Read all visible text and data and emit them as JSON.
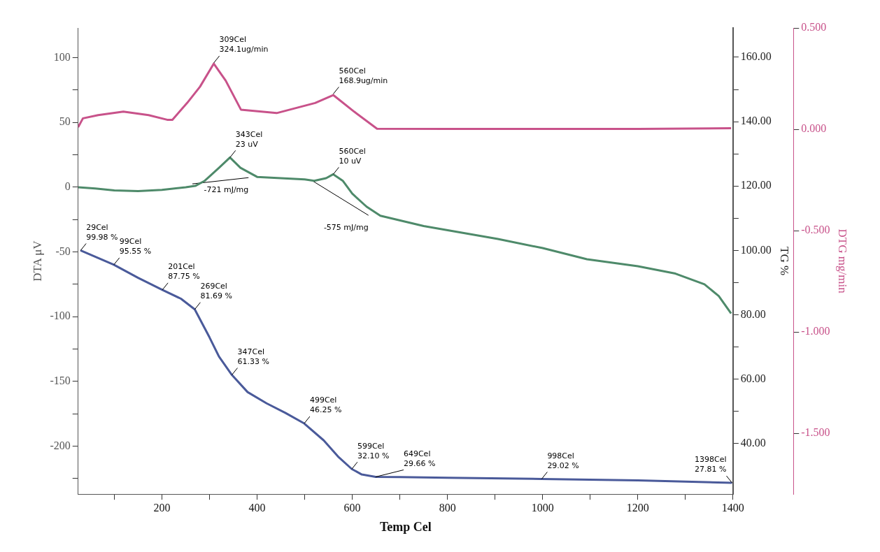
{
  "chart_data": {
    "type": "line",
    "xlabel": "Temp Cel",
    "ylabel": "DTA μV",
    "y2label": "TG %",
    "y3label": "DTG mg/min",
    "xlim": [
      24,
      1400
    ],
    "xticks": [
      {
        "value": 100,
        "label": null
      },
      200,
      {
        "value": 300,
        "label": null
      },
      400,
      {
        "value": 500,
        "label": null
      },
      600,
      {
        "value": 700,
        "label": null
      },
      800,
      {
        "value": 900,
        "label": null
      },
      1000,
      {
        "value": 1100,
        "label": null
      },
      1200,
      {
        "value": 1300,
        "label": null
      },
      1400
    ],
    "ylim": [
      -237,
      123
    ],
    "yticks": [
      {
        "value": -225,
        "label": null
      },
      -200,
      {
        "value": -175,
        "label": null
      },
      -150,
      {
        "value": -125,
        "label": null
      },
      -100,
      {
        "value": -75,
        "label": null
      },
      -50,
      {
        "value": -25,
        "label": null
      },
      0,
      {
        "value": 25,
        "label": null
      },
      50,
      {
        "value": 75,
        "label": null
      },
      100
    ],
    "y2lim": [
      24.3,
      169.1
    ],
    "y2ticks": [
      {
        "value": 40,
        "label": "40.00"
      },
      {
        "value": 50,
        "label": null
      },
      {
        "value": 60,
        "label": "60.00"
      },
      {
        "value": 70,
        "label": null
      },
      {
        "value": 80,
        "label": "80.00"
      },
      {
        "value": 90,
        "label": null
      },
      {
        "value": 100,
        "label": "100.00"
      },
      {
        "value": 110,
        "label": null
      },
      {
        "value": 120,
        "label": "120.00"
      },
      {
        "value": 130,
        "label": null
      },
      {
        "value": 140,
        "label": "140.00"
      },
      {
        "value": 150,
        "label": null
      },
      {
        "value": 160,
        "label": "160.00"
      }
    ],
    "y3lim": [
      -1.8,
      0.5
    ],
    "y3ticks": [
      {
        "value": -1.5,
        "label": "-1.500"
      },
      {
        "value": -1,
        "label": "-1.000"
      },
      {
        "value": -0.5,
        "label": "-0.500"
      },
      {
        "value": 0,
        "label": "0.000"
      },
      {
        "value": 0.5,
        "label": "0.500"
      }
    ],
    "annotations": [
      {
        "text": "-721 mJ/mg",
        "x": 382,
        "y": 7.4
      },
      {
        "text": "-575 mJ/mg",
        "x": 634,
        "y": -21.7
      },
      {
        "text": "309Cel\n324.1ug/min",
        "x": 309,
        "y": 96
      },
      {
        "text": "560Cel\n168.9ug/min",
        "x": 560,
        "y": 72
      }
    ],
    "series": [
      {
        "color": "#c8528a",
        "axis": "y3",
        "x": [
          24,
          34,
          66,
          119,
          172,
          211,
          222,
          253,
          280,
          309,
          334,
          366,
          441,
          522,
          560,
          604,
          652,
          800,
          1000,
          1200,
          1396
        ],
        "values": [
          0.01,
          0.054,
          0.07,
          0.087,
          0.07,
          0.047,
          0.047,
          0.13,
          0.21,
          0.324,
          0.24,
          0.097,
          0.08,
          0.13,
          0.169,
          0.087,
          0.003,
          0.002,
          0.002,
          0.002,
          0.005
        ]
      },
      {
        "color": "#4e8a6a",
        "axis": "y",
        "x": [
          24,
          60,
          100,
          150,
          200,
          250,
          270,
          290,
          320,
          343,
          365,
          400,
          450,
          500,
          520,
          545,
          560,
          580,
          600,
          630,
          659,
          750,
          906,
          1000,
          1093,
          1200,
          1279,
          1340,
          1370,
          1396
        ],
        "values": [
          0,
          -1,
          -2.5,
          -3,
          -2,
          0,
          1,
          5,
          15,
          23,
          15,
          8,
          7,
          6,
          5,
          7,
          10,
          5,
          -5,
          -15,
          -22,
          -30,
          -40,
          -47,
          -55.6,
          -61,
          -66.7,
          -75,
          -84,
          -97.5
        ],
        "value_labels": [
          null,
          null,
          null,
          null,
          null,
          null,
          null,
          null,
          null,
          "343Cel\n23 uV",
          null,
          null,
          null,
          null,
          null,
          null,
          "560Cel\n10 uV",
          null,
          null,
          null,
          null,
          null,
          null,
          null,
          null,
          null,
          null,
          null,
          null,
          null
        ]
      },
      {
        "color": "#000000",
        "axis": "y",
        "x": [
          264,
          382
        ],
        "values": [
          2.6,
          7.4
        ]
      },
      {
        "color": "#000000",
        "axis": "y",
        "x": [
          517,
          634
        ],
        "values": [
          4.8,
          -21.7
        ]
      },
      {
        "color": "#4a5a9a",
        "axis": "y2",
        "x": [
          29,
          99,
          150,
          201,
          240,
          269,
          300,
          320,
          347,
          380,
          420,
          460,
          499,
          540,
          570,
          599,
          620,
          649,
          700,
          800,
          998,
          1200,
          1300,
          1398
        ],
        "values": [
          99.98,
          95.55,
          91.5,
          87.75,
          85,
          81.69,
          73,
          67,
          61.33,
          56,
          52.5,
          49.5,
          46.25,
          41,
          36,
          32.1,
          30.4,
          29.66,
          29.6,
          29.4,
          29.02,
          28.6,
          28.2,
          27.81
        ],
        "value_labels": [
          "29Cel\n99.98 %",
          "99Cel\n95.55 %",
          null,
          "201Cel\n87.75 %",
          null,
          "269Cel\n81.69 %",
          null,
          null,
          "347Cel\n61.33 %",
          null,
          null,
          null,
          "499Cel\n46.25 %",
          null,
          null,
          "599Cel\n32.10 %",
          null,
          "649Cel\n29.66 %",
          null,
          null,
          "998Cel\n29.02 %",
          null,
          null,
          "1398Cel\n27.81 %"
        ]
      }
    ]
  }
}
